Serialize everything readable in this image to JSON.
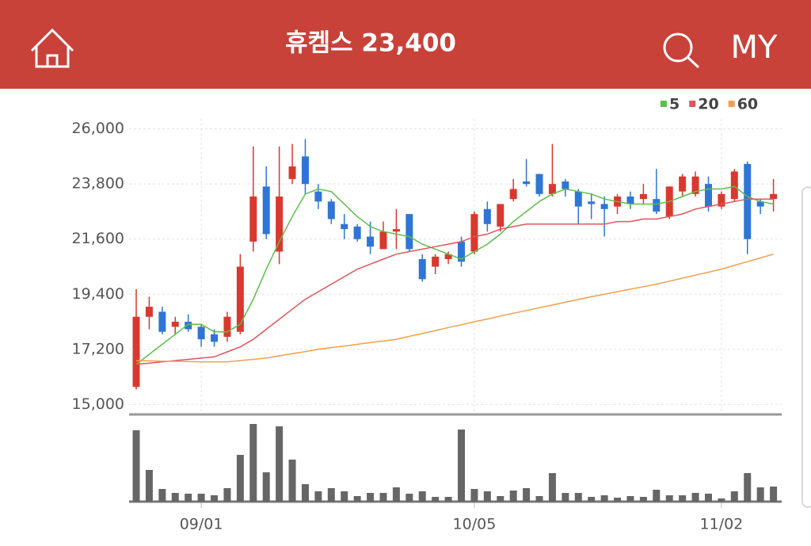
{
  "header": {
    "title": "휴켐스 23,400",
    "right": "MY"
  },
  "chart_data": {
    "type": "candlestick",
    "categories": [
      null,
      null,
      null,
      null,
      null,
      "09/01",
      null,
      null,
      null,
      null,
      null,
      null,
      null,
      null,
      null,
      null,
      null,
      null,
      null,
      null,
      null,
      null,
      null,
      null,
      null,
      null,
      "10/05",
      null,
      null,
      null,
      null,
      null,
      null,
      null,
      null,
      null,
      null,
      null,
      null,
      null,
      null,
      null,
      null,
      null,
      null,
      "11/02",
      null,
      null,
      null,
      null
    ],
    "open": [
      15700,
      18500,
      18700,
      18100,
      18300,
      18100,
      17800,
      17700,
      17900,
      21500,
      23700,
      21100,
      24000,
      24900,
      23500,
      23100,
      22200,
      22100,
      21700,
      21200,
      21900,
      22600,
      20800,
      20500,
      20800,
      21500,
      21100,
      22800,
      22100,
      23200,
      23900,
      24200,
      23400,
      23900,
      23500,
      23100,
      23000,
      22900,
      23300,
      23200,
      23200,
      22500,
      23500,
      23400,
      23800,
      22900,
      23200,
      24600,
      23100,
      23200
    ],
    "high": [
      19600,
      19300,
      18900,
      18500,
      18600,
      18200,
      18000,
      18700,
      21000,
      25300,
      24500,
      25300,
      25400,
      25600,
      23800,
      23200,
      22600,
      22200,
      22300,
      22300,
      22800,
      22600,
      21000,
      21000,
      21100,
      21700,
      22700,
      23100,
      23000,
      24000,
      24800,
      24200,
      25400,
      24000,
      23600,
      23400,
      23300,
      23400,
      23500,
      23800,
      24400,
      23700,
      24200,
      24300,
      24100,
      23500,
      24400,
      24700,
      23200,
      24000
    ],
    "low": [
      15600,
      18000,
      17800,
      17800,
      17900,
      17300,
      17300,
      17500,
      17800,
      21100,
      21600,
      20600,
      23800,
      23400,
      22800,
      22200,
      21600,
      21500,
      21000,
      21200,
      21200,
      21100,
      19900,
      20200,
      20600,
      20500,
      21000,
      21900,
      21900,
      23100,
      23700,
      23300,
      23300,
      23300,
      22200,
      22400,
      21700,
      22600,
      22800,
      23000,
      22600,
      22400,
      23300,
      23300,
      22700,
      22800,
      23100,
      21000,
      22600,
      22700
    ],
    "close": [
      18500,
      18900,
      17900,
      18300,
      18000,
      17600,
      17500,
      18500,
      20500,
      23300,
      21800,
      23300,
      24500,
      23800,
      23100,
      22400,
      22000,
      21600,
      21300,
      21900,
      22000,
      21200,
      20000,
      20900,
      21000,
      20700,
      22600,
      22200,
      23000,
      23600,
      23800,
      23400,
      23800,
      23600,
      22900,
      23000,
      22800,
      23300,
      23000,
      23400,
      22700,
      23700,
      24100,
      24100,
      22900,
      23400,
      24300,
      21600,
      22900,
      23400
    ],
    "up_color": "#d9382e",
    "down_color": "#2f75d6",
    "ylim": [
      14600,
      26400
    ],
    "yticks": [
      {
        "value": 15000,
        "label": "15,000"
      },
      {
        "value": 17200,
        "label": "17,200"
      },
      {
        "value": 19400,
        "label": "19,400"
      },
      {
        "value": 21600,
        "label": "21,600"
      },
      {
        "value": 23800,
        "label": "23,800"
      },
      {
        "value": 26000,
        "label": "26,000"
      }
    ],
    "grid": true,
    "legend": "top-right",
    "series": [
      {
        "name": "5",
        "color": "#5bbf4a",
        "values": [
          16600,
          17000,
          17400,
          17800,
          18200,
          18200,
          17900,
          17900,
          18200,
          19200,
          20400,
          21500,
          22500,
          23400,
          23600,
          23500,
          23000,
          22500,
          22100,
          21900,
          21800,
          21700,
          21400,
          21200,
          21000,
          20800,
          21100,
          21400,
          21800,
          22300,
          22700,
          23100,
          23400,
          23600,
          23500,
          23400,
          23200,
          23100,
          23000,
          23000,
          23000,
          23100,
          23300,
          23500,
          23600,
          23600,
          23700,
          23300,
          23100,
          23000
        ]
      },
      {
        "name": "20",
        "color": "#e0555a",
        "values": [
          16600,
          16650,
          16700,
          16750,
          16800,
          16850,
          16900,
          17100,
          17300,
          17600,
          18000,
          18400,
          18800,
          19200,
          19500,
          19800,
          20100,
          20400,
          20600,
          20800,
          21000,
          21100,
          21200,
          21300,
          21400,
          21500,
          21700,
          21800,
          22000,
          22100,
          22200,
          22200,
          22200,
          22200,
          22200,
          22200,
          22200,
          22300,
          22300,
          22400,
          22400,
          22500,
          22600,
          22800,
          22900,
          23000,
          23100,
          23200,
          23200,
          23200
        ]
      },
      {
        "name": "60",
        "color": "#f0a04b",
        "values": [
          16750,
          16740,
          16730,
          16720,
          16710,
          16700,
          16700,
          16700,
          16750,
          16800,
          16850,
          16940,
          17030,
          17110,
          17200,
          17270,
          17330,
          17400,
          17470,
          17530,
          17600,
          17720,
          17830,
          17950,
          18070,
          18180,
          18300,
          18410,
          18530,
          18640,
          18750,
          18860,
          18970,
          19080,
          19190,
          19300,
          19400,
          19500,
          19600,
          19700,
          19800,
          19920,
          20040,
          20160,
          20280,
          20400,
          20550,
          20700,
          20850,
          21000
        ]
      }
    ],
    "volume": {
      "color": "#666666",
      "ylim": [
        0,
        100
      ],
      "values": [
        90,
        40,
        16,
        11,
        10,
        10,
        8,
        17,
        59,
        98,
        37,
        95,
        53,
        22,
        13,
        17,
        13,
        7,
        11,
        11,
        18,
        10,
        13,
        6,
        6,
        91,
        16,
        13,
        7,
        14,
        17,
        7,
        36,
        11,
        11,
        6,
        8,
        5,
        7,
        6,
        15,
        8,
        8,
        11,
        10,
        4,
        13,
        36,
        18,
        19
      ]
    }
  }
}
